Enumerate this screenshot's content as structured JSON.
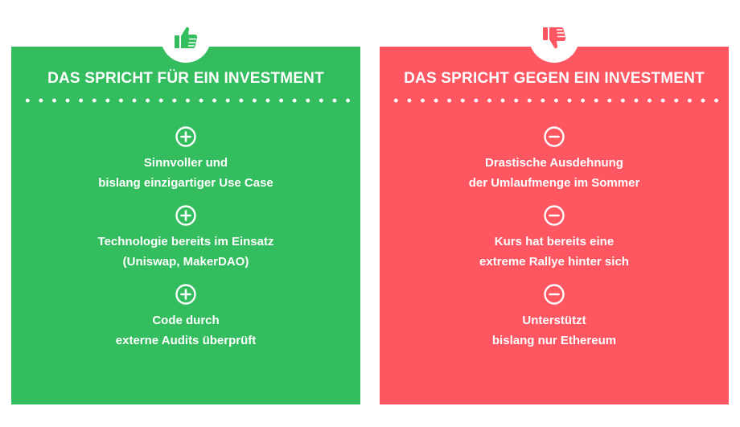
{
  "pro": {
    "heading": "DAS SPRICHT FÜR EIN INVESTMENT",
    "icon": "thumbs-up-icon",
    "color": "#33bd5e",
    "items": [
      {
        "line1": "Sinnvoller und",
        "line2": "bislang einzigartiger Use Case"
      },
      {
        "line1": "Technologie bereits im Einsatz",
        "line2": "(Uniswap, MakerDAO)"
      },
      {
        "line1": "Code durch",
        "line2": "externe Audits überprüft"
      }
    ]
  },
  "contra": {
    "heading": "DAS SPRICHT GEGEN EIN INVESTMENT",
    "icon": "thumbs-down-icon",
    "color": "#fe5761",
    "items": [
      {
        "line1": "Drastische Ausdehnung",
        "line2": "der Umlaufmenge im Sommer"
      },
      {
        "line1": "Kurs hat bereits eine",
        "line2": "extreme Rallye hinter sich"
      },
      {
        "line1": "Unterstützt",
        "line2": "bislang nur Ethereum"
      }
    ]
  }
}
